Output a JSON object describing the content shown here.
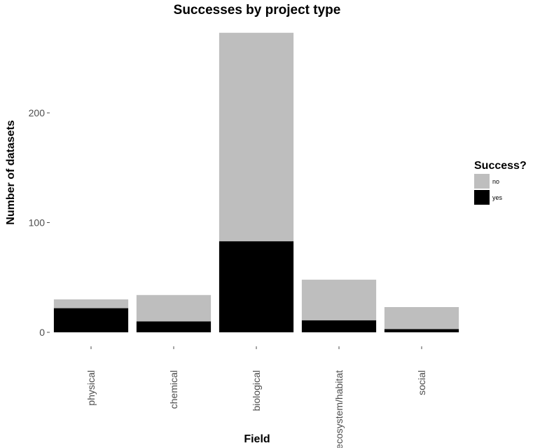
{
  "chart_data": {
    "type": "bar",
    "stacked": true,
    "title": "Successes by project type",
    "xlabel": "Field",
    "ylabel": "Number of datasets",
    "categories": [
      "physical",
      "chemical",
      "biological",
      "ecosystem/habitat",
      "social"
    ],
    "series": [
      {
        "name": "yes",
        "values": [
          22,
          10,
          83,
          11,
          3
        ],
        "color": "#000000"
      },
      {
        "name": "no",
        "values": [
          8,
          24,
          190,
          37,
          20
        ],
        "color": "#bebebe"
      }
    ],
    "ylim": [
      0,
      280
    ],
    "yticks": [
      0,
      100,
      200
    ],
    "grid": false,
    "legend": {
      "title": "Success?",
      "position": "right",
      "items": [
        {
          "label": "no",
          "color": "#bebebe"
        },
        {
          "label": "yes",
          "color": "#000000"
        }
      ]
    }
  }
}
